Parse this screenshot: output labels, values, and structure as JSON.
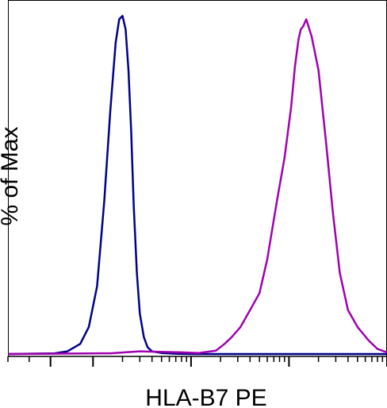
{
  "chart_data": {
    "type": "line",
    "title": "",
    "xlabel": "HLA-B7 PE",
    "ylabel": "% of Max",
    "x_scale": "log",
    "xlim": [
      -100,
      100000
    ],
    "ylim": [
      0,
      100
    ],
    "grid": false,
    "legend": "none",
    "series": [
      {
        "color": "#00008b",
        "x": [
          -100,
          10,
          40,
          70,
          90,
          110,
          130,
          150,
          170,
          185,
          200,
          215,
          230,
          245,
          260,
          280,
          300,
          330,
          360,
          400,
          500,
          700,
          1000,
          10000,
          100000
        ],
        "y": [
          0,
          0.2,
          0.8,
          3,
          8,
          20,
          45,
          72,
          92,
          99,
          100,
          96,
          84,
          66,
          44,
          24,
          12,
          5,
          2,
          0.8,
          0.3,
          0.1,
          0,
          0,
          0
        ]
      },
      {
        "color": "#a000b0",
        "x": [
          -100,
          150,
          300,
          800,
          1200,
          1800,
          2200,
          2600,
          3200,
          4000,
          5000,
          6000,
          7500,
          9000,
          10500,
          11500,
          12500,
          13200,
          14000,
          15000,
          17000,
          20000,
          24000,
          28000,
          33000,
          40000,
          50000,
          65000,
          80000,
          100000
        ],
        "y": [
          0,
          0.2,
          0.8,
          0.5,
          0.3,
          1,
          3,
          5,
          8,
          13,
          18,
          28,
          45,
          58,
          73,
          85,
          93,
          96,
          97,
          99,
          94,
          84,
          62,
          42,
          24,
          13,
          8,
          4,
          1.5,
          0.5
        ]
      }
    ]
  }
}
